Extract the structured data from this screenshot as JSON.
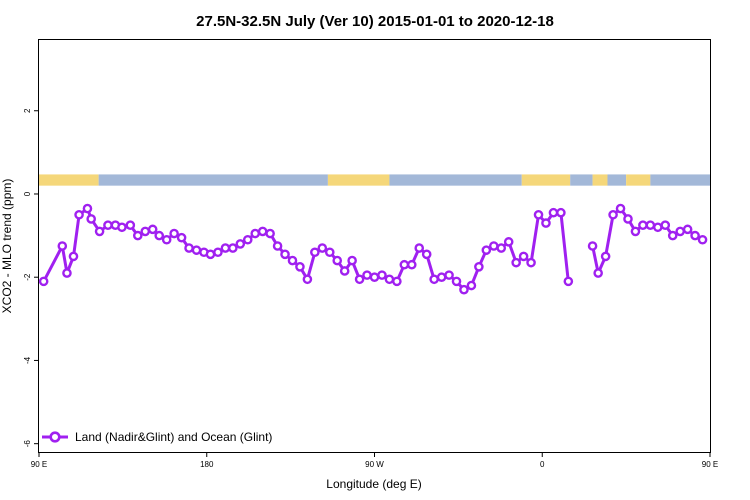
{
  "chart_data": {
    "type": "line",
    "title": "27.5N-32.5N July (Ver 10)   2015-01-01 to 2020-12-18",
    "xlabel": "Longitude (deg E)",
    "ylabel": "XCO2 - MLO trend (ppm)",
    "xlim": [
      90,
      450
    ],
    "ylim": [
      -6.2,
      3.7
    ],
    "xticks": [
      {
        "value": 90,
        "label": "90 E"
      },
      {
        "value": 180,
        "label": "180"
      },
      {
        "value": 270,
        "label": "90 W"
      },
      {
        "value": 360,
        "label": "0"
      },
      {
        "value": 450,
        "label": "90 E"
      }
    ],
    "yticks": [
      {
        "value": 2,
        "label": "2"
      },
      {
        "value": 0,
        "label": "0"
      },
      {
        "value": -2,
        "label": "-2"
      },
      {
        "value": -4,
        "label": "-4"
      },
      {
        "value": -6,
        "label": "-6"
      }
    ],
    "grid": false,
    "legend": {
      "position": "bottom-left",
      "entries": [
        "Land (Nadir&Glint) and Ocean (Glint)"
      ]
    },
    "colors": {
      "series": "#a020f0",
      "land": "#f5d77a",
      "ocean": "#a3b8d8"
    },
    "land_ocean_strip": {
      "y_range": [
        0.2,
        0.47
      ],
      "segments": [
        {
          "from": 90,
          "to": 122,
          "kind": "land"
        },
        {
          "from": 122,
          "to": 245,
          "kind": "ocean"
        },
        {
          "from": 245,
          "to": 278,
          "kind": "land"
        },
        {
          "from": 278,
          "to": 349,
          "kind": "ocean"
        },
        {
          "from": 349,
          "to": 375,
          "kind": "land"
        },
        {
          "from": 375,
          "to": 387,
          "kind": "ocean"
        },
        {
          "from": 387,
          "to": 395,
          "kind": "land"
        },
        {
          "from": 395,
          "to": 405,
          "kind": "ocean"
        },
        {
          "from": 405,
          "to": 418,
          "kind": "land"
        },
        {
          "from": 418,
          "to": 450,
          "kind": "ocean"
        }
      ]
    },
    "series": [
      {
        "name": "Land (Nadir&Glint) and Ocean (Glint)",
        "segments": [
          [
            [
              92.5,
              -2.1
            ],
            [
              102.5,
              -1.25
            ],
            [
              105,
              -1.9
            ],
            [
              108.5,
              -1.5
            ],
            [
              111.5,
              -0.5
            ],
            [
              116,
              -0.35
            ],
            [
              118,
              -0.6
            ],
            [
              122.5,
              -0.9
            ],
            [
              127,
              -0.75
            ],
            [
              131,
              -0.75
            ],
            [
              134.5,
              -0.8
            ],
            [
              139,
              -0.75
            ],
            [
              143,
              -1.0
            ],
            [
              147,
              -0.9
            ],
            [
              151,
              -0.85
            ],
            [
              154.5,
              -1.0
            ],
            [
              158.5,
              -1.1
            ],
            [
              162.5,
              -0.95
            ],
            [
              166.5,
              -1.05
            ],
            [
              170.5,
              -1.3
            ],
            [
              174.5,
              -1.35
            ],
            [
              178.5,
              -1.4
            ],
            [
              182,
              -1.45
            ],
            [
              186,
              -1.4
            ],
            [
              190,
              -1.3
            ],
            [
              194,
              -1.3
            ],
            [
              198,
              -1.2
            ],
            [
              202,
              -1.1
            ],
            [
              206,
              -0.95
            ],
            [
              210,
              -0.9
            ],
            [
              214,
              -0.95
            ],
            [
              218,
              -1.25
            ],
            [
              222,
              -1.45
            ],
            [
              226,
              -1.6
            ],
            [
              230,
              -1.75
            ],
            [
              234,
              -2.05
            ],
            [
              238,
              -1.4
            ],
            [
              242,
              -1.3
            ],
            [
              246,
              -1.4
            ],
            [
              250,
              -1.6
            ],
            [
              254,
              -1.85
            ],
            [
              258,
              -1.6
            ],
            [
              262,
              -2.05
            ],
            [
              266,
              -1.95
            ],
            [
              270,
              -2.0
            ],
            [
              274,
              -1.95
            ],
            [
              278,
              -2.05
            ],
            [
              282,
              -2.1
            ],
            [
              286,
              -1.7
            ],
            [
              290,
              -1.7
            ],
            [
              294,
              -1.3
            ],
            [
              298,
              -1.45
            ],
            [
              302,
              -2.05
            ],
            [
              306,
              -2.0
            ],
            [
              310,
              -1.95
            ],
            [
              314,
              -2.1
            ],
            [
              318,
              -2.3
            ],
            [
              322,
              -2.2
            ],
            [
              326,
              -1.75
            ],
            [
              330,
              -1.35
            ],
            [
              334,
              -1.25
            ],
            [
              338,
              -1.3
            ],
            [
              342,
              -1.15
            ],
            [
              346,
              -1.65
            ],
            [
              350,
              -1.5
            ],
            [
              354,
              -1.65
            ],
            [
              358,
              -0.5
            ],
            [
              362,
              -0.7
            ],
            [
              366,
              -0.45
            ],
            [
              370,
              -0.45
            ],
            [
              374,
              -2.1
            ]
          ],
          [
            [
              387,
              -1.25
            ],
            [
              390,
              -1.9
            ],
            [
              394,
              -1.5
            ],
            [
              398,
              -0.5
            ],
            [
              402,
              -0.35
            ],
            [
              406,
              -0.6
            ],
            [
              410,
              -0.9
            ],
            [
              414,
              -0.75
            ],
            [
              418,
              -0.75
            ],
            [
              422,
              -0.8
            ],
            [
              426,
              -0.75
            ],
            [
              430,
              -1.0
            ],
            [
              434,
              -0.9
            ],
            [
              438,
              -0.85
            ],
            [
              442,
              -1.0
            ],
            [
              446,
              -1.1
            ]
          ]
        ]
      }
    ]
  }
}
